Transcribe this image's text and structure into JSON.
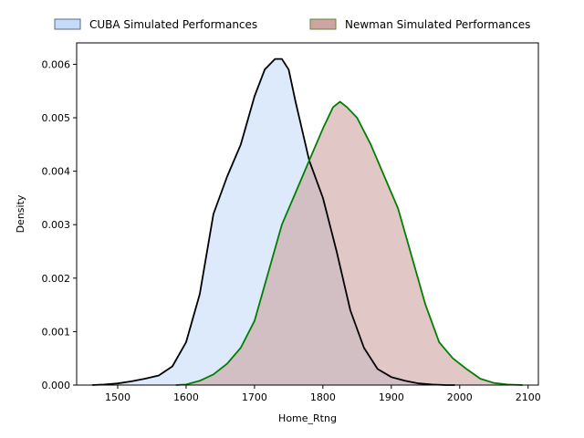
{
  "chart_data": {
    "type": "area",
    "xlabel": "Home_Rtng",
    "ylabel": "Density",
    "xlim": [
      1440,
      2115
    ],
    "ylim": [
      0,
      0.0064
    ],
    "xticks": [
      1500,
      1600,
      1700,
      1800,
      1900,
      2000,
      2100
    ],
    "yticks": [
      0.0,
      0.001,
      0.002,
      0.003,
      0.004,
      0.005,
      0.006
    ],
    "ytick_labels": [
      "0.000",
      "0.001",
      "0.002",
      "0.003",
      "0.004",
      "0.005",
      "0.006"
    ],
    "legend_position": "top-center, outside plot",
    "grid": false,
    "series": [
      {
        "name": "CUBA Simulated Performances",
        "fill": "#bfd8f8",
        "line": "#000000",
        "x": [
          1463,
          1480,
          1500,
          1520,
          1540,
          1560,
          1580,
          1600,
          1620,
          1640,
          1660,
          1680,
          1700,
          1715,
          1730,
          1740,
          1750,
          1760,
          1780,
          1800,
          1820,
          1840,
          1860,
          1880,
          1900,
          1920,
          1940,
          1960,
          1980,
          1993
        ],
        "y": [
          0.0,
          1e-05,
          3e-05,
          7e-05,
          0.00012,
          0.00018,
          0.00035,
          0.0008,
          0.0017,
          0.0032,
          0.0039,
          0.0045,
          0.0054,
          0.0059,
          0.0061,
          0.0061,
          0.0059,
          0.0053,
          0.0042,
          0.0035,
          0.0025,
          0.0014,
          0.0007,
          0.0003,
          0.00015,
          8e-05,
          3e-05,
          1e-05,
          0.0,
          0.0
        ]
      },
      {
        "name": "Newman Simulated Performances",
        "fill": "#c99a98",
        "line": "#008000",
        "x": [
          1585,
          1600,
          1620,
          1640,
          1660,
          1680,
          1700,
          1720,
          1740,
          1760,
          1780,
          1800,
          1815,
          1825,
          1835,
          1850,
          1870,
          1890,
          1910,
          1930,
          1950,
          1970,
          1990,
          2010,
          2030,
          2050,
          2070,
          2092
        ],
        "y": [
          0.0,
          1e-05,
          8e-05,
          0.0002,
          0.0004,
          0.0007,
          0.0012,
          0.0021,
          0.003,
          0.0036,
          0.0042,
          0.0048,
          0.0052,
          0.0053,
          0.0052,
          0.005,
          0.0045,
          0.0039,
          0.0033,
          0.0024,
          0.0015,
          0.0008,
          0.0005,
          0.0003,
          0.00012,
          4e-05,
          1e-05,
          0.0
        ]
      }
    ]
  }
}
